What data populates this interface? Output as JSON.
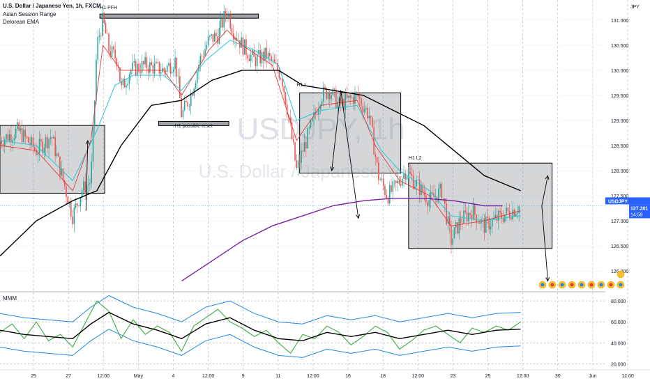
{
  "header": {
    "symbol_title": "U.S. Dollar / Japanese Yen, 1h, FXCM",
    "indicator_1": "Asian Session Range",
    "indicator_2": "Delorean EMA"
  },
  "watermark": {
    "ticker": "USDJPY, 1h",
    "name": "U.S. Dollar / Japanese Yen"
  },
  "currency_label": "JPY",
  "price_tag": {
    "symbol": "USDJPY",
    "price": "127.301",
    "countdown": "14:59"
  },
  "colors": {
    "up": "#26a69a",
    "down": "#ef5350",
    "ema_fast_red": "#e53935",
    "ema_cyan": "#26c6da",
    "ema_black": "#000000",
    "ema_purple": "#7b1fa2",
    "box_fill": "#a0a3a8",
    "osc_green": "#4caf50",
    "osc_band": "#1e88e5",
    "tag_blue": "#2962ff"
  },
  "chart_data": [
    {
      "type": "candlestick",
      "title": "U.S. Dollar / Japanese Yen, 1h, FXCM",
      "ylabel": "JPY",
      "ylim": [
        125.6,
        131.4
      ],
      "y_ticks": [
        "131.000",
        "130.500",
        "130.000",
        "129.500",
        "129.000",
        "128.500",
        "128.000",
        "127.500",
        "127.000",
        "126.500",
        "126.000"
      ],
      "x_ticks": [
        "25",
        "27",
        "12:00",
        "May",
        "4",
        "12:00",
        "9",
        "11",
        "12:00",
        "16",
        "18",
        "12:00",
        "23",
        "25",
        "12:00",
        "30",
        "Jun",
        "12:00"
      ],
      "price_path": [
        [
          0,
          128.6
        ],
        [
          0.03,
          128.8
        ],
        [
          0.06,
          128.4
        ],
        [
          0.085,
          128.7
        ],
        [
          0.1,
          128.0
        ],
        [
          0.12,
          127.1
        ],
        [
          0.135,
          127.6
        ],
        [
          0.15,
          127.8
        ],
        [
          0.155,
          129.0
        ],
        [
          0.16,
          130.5
        ],
        [
          0.17,
          131.0
        ],
        [
          0.18,
          130.4
        ],
        [
          0.195,
          130.2
        ],
        [
          0.2,
          129.6
        ],
        [
          0.215,
          130.0
        ],
        [
          0.24,
          130.1
        ],
        [
          0.27,
          130.0
        ],
        [
          0.29,
          130.2
        ],
        [
          0.3,
          129.1
        ],
        [
          0.315,
          129.5
        ],
        [
          0.33,
          130.2
        ],
        [
          0.345,
          130.6
        ],
        [
          0.36,
          130.7
        ],
        [
          0.375,
          131.2
        ],
        [
          0.385,
          130.8
        ],
        [
          0.4,
          130.5
        ],
        [
          0.42,
          130.2
        ],
        [
          0.44,
          130.3
        ],
        [
          0.465,
          129.9
        ],
        [
          0.475,
          129.2
        ],
        [
          0.49,
          128.0
        ],
        [
          0.5,
          128.4
        ],
        [
          0.515,
          128.9
        ],
        [
          0.53,
          129.5
        ],
        [
          0.545,
          129.6
        ],
        [
          0.56,
          129.3
        ],
        [
          0.575,
          129.4
        ],
        [
          0.59,
          129.5
        ],
        [
          0.61,
          129.1
        ],
        [
          0.625,
          127.9
        ],
        [
          0.64,
          127.5
        ],
        [
          0.655,
          127.7
        ],
        [
          0.67,
          128.0
        ],
        [
          0.69,
          127.7
        ],
        [
          0.71,
          127.4
        ],
        [
          0.73,
          127.6
        ],
        [
          0.745,
          126.6
        ],
        [
          0.76,
          127.0
        ],
        [
          0.78,
          127.2
        ],
        [
          0.8,
          126.9
        ],
        [
          0.83,
          127.1
        ],
        [
          0.86,
          127.3
        ]
      ],
      "series": [
        {
          "name": "ema_red",
          "values": [
            [
              0,
              128.5
            ],
            [
              0.06,
              128.4
            ],
            [
              0.12,
              127.6
            ],
            [
              0.15,
              128.6
            ],
            [
              0.17,
              130.5
            ],
            [
              0.2,
              130.0
            ],
            [
              0.27,
              130.0
            ],
            [
              0.3,
              129.5
            ],
            [
              0.345,
              130.4
            ],
            [
              0.375,
              130.8
            ],
            [
              0.4,
              130.5
            ],
            [
              0.45,
              130.1
            ],
            [
              0.49,
              128.6
            ],
            [
              0.53,
              129.3
            ],
            [
              0.59,
              129.4
            ],
            [
              0.62,
              128.5
            ],
            [
              0.66,
              127.8
            ],
            [
              0.71,
              127.5
            ],
            [
              0.745,
              126.9
            ],
            [
              0.8,
              127.0
            ],
            [
              0.86,
              127.2
            ]
          ]
        },
        {
          "name": "ema_cyan",
          "values": [
            [
              0,
              128.6
            ],
            [
              0.06,
              128.5
            ],
            [
              0.12,
              127.8
            ],
            [
              0.16,
              128.8
            ],
            [
              0.19,
              129.7
            ],
            [
              0.22,
              129.9
            ],
            [
              0.27,
              129.9
            ],
            [
              0.3,
              129.6
            ],
            [
              0.34,
              130.2
            ],
            [
              0.38,
              130.6
            ],
            [
              0.42,
              130.4
            ],
            [
              0.46,
              130.1
            ],
            [
              0.49,
              129.0
            ],
            [
              0.53,
              129.2
            ],
            [
              0.59,
              129.3
            ],
            [
              0.63,
              128.4
            ],
            [
              0.66,
              128.0
            ],
            [
              0.71,
              127.6
            ],
            [
              0.745,
              127.1
            ],
            [
              0.8,
              127.0
            ],
            [
              0.86,
              127.1
            ]
          ]
        },
        {
          "name": "ema_black",
          "values": [
            [
              0,
              126.3
            ],
            [
              0.06,
              127.0
            ],
            [
              0.12,
              127.4
            ],
            [
              0.16,
              127.6
            ],
            [
              0.2,
              128.5
            ],
            [
              0.25,
              129.3
            ],
            [
              0.3,
              129.4
            ],
            [
              0.35,
              129.8
            ],
            [
              0.4,
              130.0
            ],
            [
              0.46,
              130.0
            ],
            [
              0.5,
              129.7
            ],
            [
              0.55,
              129.6
            ],
            [
              0.6,
              129.5
            ],
            [
              0.65,
              129.2
            ],
            [
              0.7,
              128.9
            ],
            [
              0.75,
              128.4
            ],
            [
              0.8,
              127.9
            ],
            [
              0.86,
              127.6
            ]
          ]
        },
        {
          "name": "ema_purple",
          "values": [
            [
              0.3,
              125.8
            ],
            [
              0.35,
              126.2
            ],
            [
              0.4,
              126.6
            ],
            [
              0.45,
              126.9
            ],
            [
              0.5,
              127.1
            ],
            [
              0.55,
              127.3
            ],
            [
              0.6,
              127.4
            ],
            [
              0.65,
              127.45
            ],
            [
              0.7,
              127.45
            ],
            [
              0.75,
              127.4
            ],
            [
              0.8,
              127.3
            ],
            [
              0.83,
              127.3
            ]
          ]
        }
      ],
      "annotations": [
        "H1 PFH",
        "H1 possible reset",
        "H1 L",
        "H1 L2"
      ]
    },
    {
      "type": "line",
      "title": "MMM",
      "ylim": [
        15,
        88
      ],
      "y_ticks": [
        "80.000",
        "60.000",
        "40.000",
        "20.000"
      ],
      "series": [
        {
          "name": "oscillator",
          "values": [
            [
              0,
              50
            ],
            [
              0.02,
              58
            ],
            [
              0.04,
              44
            ],
            [
              0.06,
              60
            ],
            [
              0.08,
              42
            ],
            [
              0.1,
              48
            ],
            [
              0.12,
              36
            ],
            [
              0.14,
              58
            ],
            [
              0.16,
              80
            ],
            [
              0.18,
              70
            ],
            [
              0.2,
              44
            ],
            [
              0.22,
              62
            ],
            [
              0.24,
              48
            ],
            [
              0.26,
              56
            ],
            [
              0.28,
              50
            ],
            [
              0.3,
              32
            ],
            [
              0.32,
              56
            ],
            [
              0.34,
              64
            ],
            [
              0.36,
              72
            ],
            [
              0.38,
              60
            ],
            [
              0.4,
              54
            ],
            [
              0.42,
              46
            ],
            [
              0.44,
              52
            ],
            [
              0.46,
              40
            ],
            [
              0.48,
              30
            ],
            [
              0.5,
              48
            ],
            [
              0.52,
              44
            ],
            [
              0.54,
              56
            ],
            [
              0.56,
              50
            ],
            [
              0.58,
              38
            ],
            [
              0.6,
              46
            ],
            [
              0.62,
              56
            ],
            [
              0.64,
              50
            ],
            [
              0.66,
              34
            ],
            [
              0.68,
              42
            ],
            [
              0.7,
              52
            ],
            [
              0.72,
              56
            ],
            [
              0.74,
              48
            ],
            [
              0.76,
              40
            ],
            [
              0.78,
              54
            ],
            [
              0.8,
              50
            ],
            [
              0.82,
              56
            ],
            [
              0.84,
              52
            ],
            [
              0.86,
              60
            ]
          ]
        },
        {
          "name": "signal_black",
          "values": [
            [
              0,
              52
            ],
            [
              0.04,
              48
            ],
            [
              0.08,
              46
            ],
            [
              0.12,
              44
            ],
            [
              0.15,
              58
            ],
            [
              0.18,
              69
            ],
            [
              0.22,
              58
            ],
            [
              0.26,
              52
            ],
            [
              0.3,
              44
            ],
            [
              0.34,
              58
            ],
            [
              0.38,
              64
            ],
            [
              0.42,
              52
            ],
            [
              0.46,
              44
            ],
            [
              0.5,
              42
            ],
            [
              0.54,
              50
            ],
            [
              0.58,
              46
            ],
            [
              0.62,
              50
            ],
            [
              0.66,
              44
            ],
            [
              0.7,
              48
            ],
            [
              0.74,
              52
            ],
            [
              0.78,
              48
            ],
            [
              0.82,
              52
            ],
            [
              0.86,
              53
            ]
          ]
        }
      ]
    }
  ]
}
